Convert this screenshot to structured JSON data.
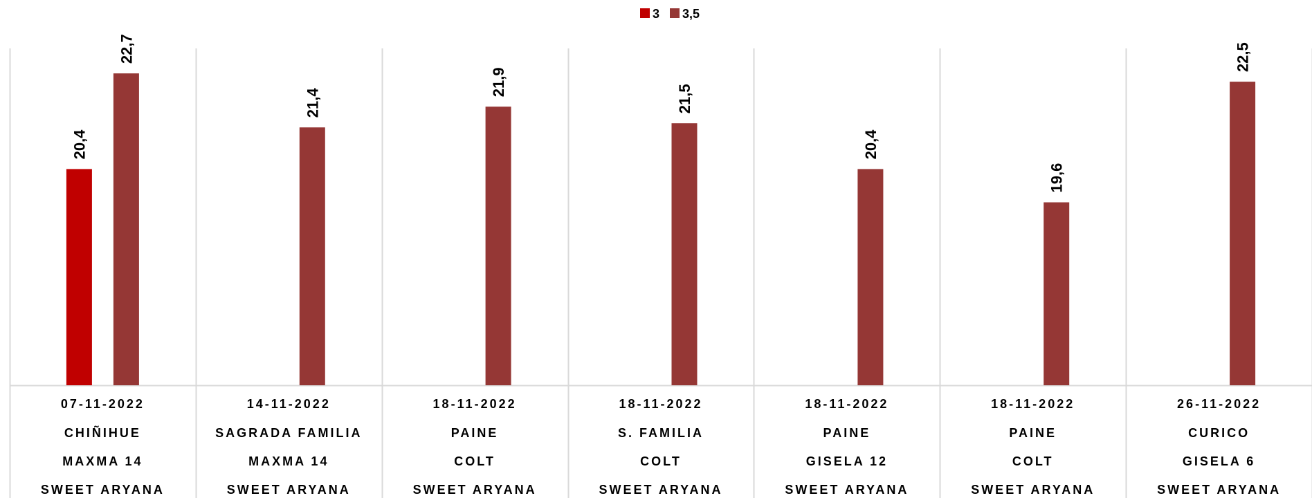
{
  "chart_data": {
    "type": "bar",
    "categories": [
      [
        "07-11-2022",
        "CHIÑIHUE",
        "MAXMA 14",
        "SWEET ARYANA"
      ],
      [
        "14-11-2022",
        "SAGRADA FAMILIA",
        "MAXMA 14",
        "SWEET ARYANA"
      ],
      [
        "18-11-2022",
        "PAINE",
        "COLT",
        "SWEET ARYANA"
      ],
      [
        "18-11-2022",
        "S. FAMILIA",
        "COLT",
        "SWEET ARYANA"
      ],
      [
        "18-11-2022",
        "PAINE",
        "GISELA 12",
        "SWEET ARYANA"
      ],
      [
        "18-11-2022",
        "PAINE",
        "COLT",
        "SWEET ARYANA"
      ],
      [
        "26-11-2022",
        "CURICO",
        "GISELA 6",
        "SWEET ARYANA"
      ]
    ],
    "series": [
      {
        "name": "3",
        "color": "#C00000",
        "values": [
          20.4,
          null,
          null,
          null,
          null,
          null,
          null
        ],
        "labels": [
          "20,4",
          "",
          "",
          "",
          "",
          "",
          ""
        ]
      },
      {
        "name": "3,5",
        "color": "#953735",
        "values": [
          22.7,
          21.4,
          21.9,
          21.5,
          20.4,
          19.6,
          22.5
        ],
        "labels": [
          "22,7",
          "21,4",
          "21,9",
          "21,5",
          "20,4",
          "19,6",
          "22,5"
        ]
      }
    ],
    "title": "",
    "xlabel": "",
    "ylabel": "",
    "ylim": [
      15.2,
      23.3
    ],
    "grid": false,
    "legend_position": "top-center"
  }
}
